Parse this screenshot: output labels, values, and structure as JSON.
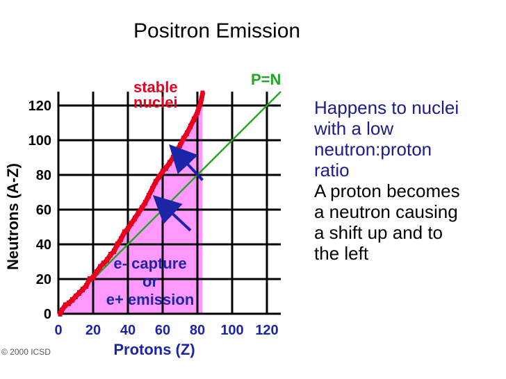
{
  "title": "Positron Emission",
  "description": {
    "lines_blue": [
      "Happens to nuclei",
      "with a low",
      "neutron:proton",
      "ratio"
    ],
    "lines_black": [
      "A proton becomes",
      "a neutron causing",
      "a shift up and to",
      "the left"
    ]
  },
  "copyright": "© 2000 ICSD",
  "chart_data": {
    "type": "scatter",
    "xlabel": "Protons  (Z)",
    "ylabel": "Neutrons  (A-Z)",
    "xlim": [
      0,
      128
    ],
    "ylim": [
      0,
      128
    ],
    "x_ticks": [
      0,
      20,
      40,
      60,
      80,
      100,
      120
    ],
    "y_ticks": [
      0,
      20,
      40,
      60,
      80,
      100,
      120
    ],
    "grid": true,
    "reference_line": {
      "label": "P=N",
      "from": [
        0,
        0
      ],
      "to": [
        128,
        128
      ],
      "color": "#23a623"
    },
    "stable_band": {
      "label": [
        "stable",
        "nuclei"
      ],
      "color": "#e8001c",
      "points": [
        [
          1,
          0
        ],
        [
          2,
          2
        ],
        [
          4,
          5
        ],
        [
          6,
          6
        ],
        [
          8,
          8
        ],
        [
          10,
          10
        ],
        [
          12,
          12
        ],
        [
          14,
          14
        ],
        [
          16,
          16
        ],
        [
          18,
          20
        ],
        [
          20,
          21
        ],
        [
          22,
          24
        ],
        [
          24,
          27
        ],
        [
          26,
          29
        ],
        [
          28,
          31
        ],
        [
          30,
          34
        ],
        [
          32,
          36
        ],
        [
          34,
          40
        ],
        [
          36,
          43
        ],
        [
          38,
          47
        ],
        [
          40,
          49
        ],
        [
          42,
          52
        ],
        [
          44,
          55
        ],
        [
          46,
          58
        ],
        [
          48,
          61
        ],
        [
          50,
          64
        ],
        [
          52,
          68
        ],
        [
          54,
          72
        ],
        [
          56,
          76
        ],
        [
          58,
          79
        ],
        [
          60,
          82
        ],
        [
          62,
          84
        ],
        [
          64,
          87
        ],
        [
          66,
          90
        ],
        [
          68,
          94
        ],
        [
          70,
          97
        ],
        [
          72,
          101
        ],
        [
          74,
          104
        ],
        [
          76,
          108
        ],
        [
          78,
          112
        ],
        [
          80,
          116
        ],
        [
          82,
          122
        ],
        [
          83,
          127
        ]
      ]
    },
    "region": {
      "color": "#ff99ff",
      "label": [
        "e- capture",
        "or",
        "e+ emission"
      ]
    },
    "arrows": [
      {
        "from": [
          83,
          77
        ],
        "to": [
          68,
          93
        ],
        "color": "#1c25a8"
      },
      {
        "from": [
          76,
          48
        ],
        "to": [
          59,
          64
        ],
        "color": "#1c25a8"
      }
    ]
  }
}
